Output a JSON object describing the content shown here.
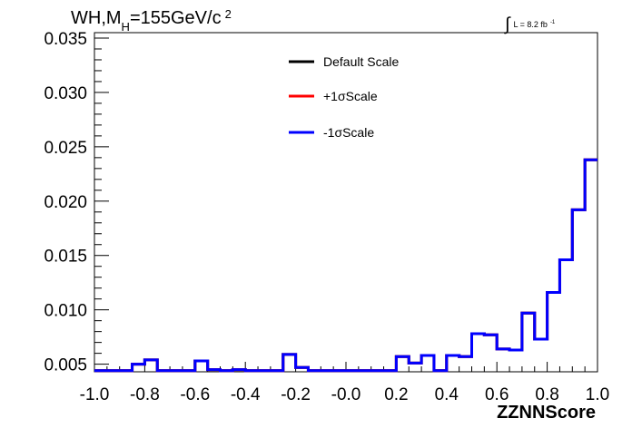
{
  "chart_data": {
    "type": "histogram",
    "title_main": "WH,M",
    "title_sub": "H",
    "title_rest": "=155GeV/c",
    "title_sup": "2",
    "luminosity": {
      "prefix": "∫",
      "text": "L = 8.2 fb",
      "sup": "-1"
    },
    "xlabel": "ZZNNScore",
    "xlim": [
      -1.0,
      1.0
    ],
    "ylim": [
      0.0043,
      0.0355
    ],
    "x_ticks": [
      "-1.0",
      "-0.8",
      "-0.6",
      "-0.4",
      "-0.2",
      "-0.0",
      "0.2",
      "0.4",
      "0.6",
      "0.8",
      "1.0"
    ],
    "y_ticks": [
      "0.005",
      "0.010",
      "0.015",
      "0.020",
      "0.025",
      "0.030",
      "0.035"
    ],
    "legend": [
      {
        "label": "Default Scale",
        "color": "#000000"
      },
      {
        "label": "+1σScale",
        "color": "#ff0000"
      },
      {
        "label": "-1σScale",
        "color": "#0000ff"
      }
    ],
    "bin_edges": [
      -1.0,
      -0.95,
      -0.9,
      -0.85,
      -0.8,
      -0.75,
      -0.7,
      -0.65,
      -0.6,
      -0.55,
      -0.5,
      -0.45,
      -0.4,
      -0.35,
      -0.3,
      -0.25,
      -0.2,
      -0.15,
      -0.1,
      -0.05,
      0.0,
      0.05,
      0.1,
      0.15,
      0.2,
      0.25,
      0.3,
      0.35,
      0.4,
      0.45,
      0.5,
      0.55,
      0.6,
      0.65,
      0.7,
      0.75,
      0.8,
      0.85,
      0.9,
      0.95,
      1.0
    ],
    "bin_values": [
      0.0044,
      0.0044,
      0.0044,
      0.005,
      0.0054,
      0.0044,
      0.0044,
      0.0044,
      0.0053,
      0.0045,
      0.0044,
      0.0045,
      0.0044,
      0.0044,
      0.0044,
      0.0059,
      0.0047,
      0.0044,
      0.0044,
      0.0044,
      0.0044,
      0.0044,
      0.0044,
      0.0044,
      0.0057,
      0.0051,
      0.0058,
      0.0044,
      0.0058,
      0.0057,
      0.0078,
      0.0077,
      0.0064,
      0.0063,
      0.0097,
      0.0073,
      0.0116,
      0.0146,
      0.0192,
      0.0238
    ]
  }
}
